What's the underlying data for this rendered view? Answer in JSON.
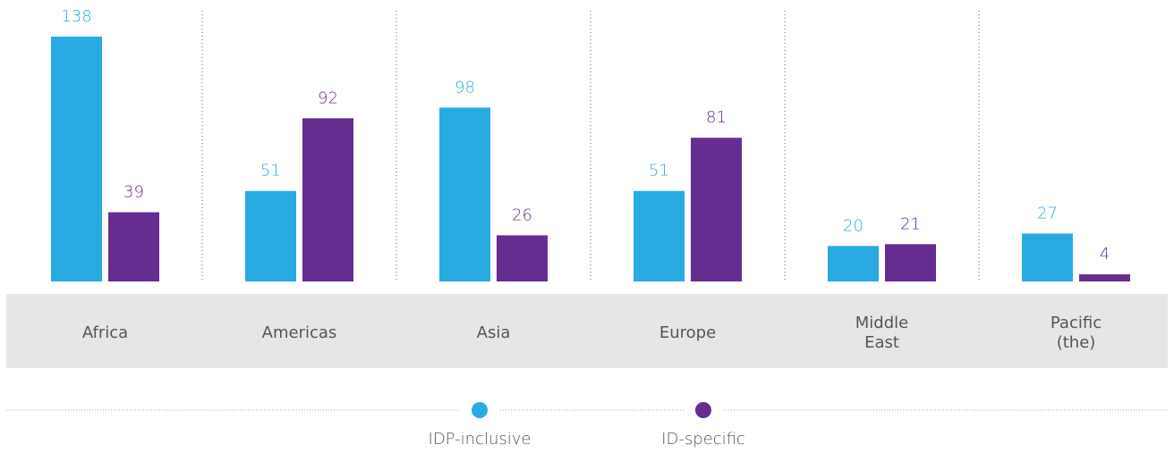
{
  "chart_data": {
    "type": "bar",
    "categories": [
      "Africa",
      "Americas",
      "Asia",
      "Europe",
      "Middle East",
      "Pacific (the)"
    ],
    "series": [
      {
        "name": "IDP-inclusive",
        "color": "#29abe2",
        "values": [
          138,
          51,
          98,
          51,
          20,
          27
        ]
      },
      {
        "name": "ID-specific",
        "color": "#662d91",
        "values": [
          39,
          92,
          26,
          81,
          21,
          4
        ]
      }
    ]
  }
}
